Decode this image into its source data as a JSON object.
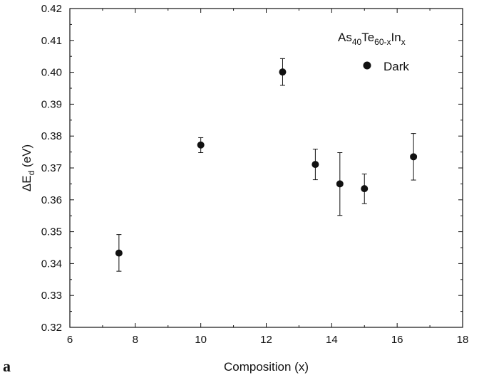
{
  "chart_data": {
    "type": "scatter",
    "panel_label": "a",
    "xlabel": "Composition (x)",
    "ylabel": {
      "base": "ΔE",
      "sub": "d",
      "rest": " (eV)"
    },
    "xlim": [
      6,
      18
    ],
    "ylim": [
      0.32,
      0.42
    ],
    "x_ticks": [
      6,
      8,
      10,
      12,
      14,
      16,
      18
    ],
    "y_ticks": [
      0.32,
      0.33,
      0.34,
      0.35,
      0.36,
      0.37,
      0.38,
      0.39,
      0.4,
      0.41,
      0.42
    ],
    "x_tick_labels": [
      "6",
      "8",
      "10",
      "12",
      "14",
      "16",
      "18"
    ],
    "y_tick_labels": [
      "0.32",
      "0.33",
      "0.34",
      "0.35",
      "0.36",
      "0.37",
      "0.38",
      "0.39",
      "0.40",
      "0.41",
      "0.42"
    ],
    "grid": false,
    "legend": {
      "placement": "top-right",
      "title_parts": [
        {
          "text": "As",
          "sub": false
        },
        {
          "text": "40",
          "sub": true
        },
        {
          "text": "Te",
          "sub": false
        },
        {
          "text": "60-x",
          "sub": true
        },
        {
          "text": "In",
          "sub": false
        },
        {
          "text": "x",
          "sub": true
        }
      ],
      "entry": "Dark"
    },
    "series": [
      {
        "name": "Dark",
        "marker": "filled-circle",
        "color": "#111111",
        "points": [
          {
            "x": 7.5,
            "y": 0.3433,
            "err_low": 0.3376,
            "err_high": 0.3491
          },
          {
            "x": 10.0,
            "y": 0.3772,
            "err_low": 0.3748,
            "err_high": 0.3795
          },
          {
            "x": 12.5,
            "y": 0.4001,
            "err_low": 0.3959,
            "err_high": 0.4043
          },
          {
            "x": 13.5,
            "y": 0.3711,
            "err_low": 0.3663,
            "err_high": 0.3759
          },
          {
            "x": 14.25,
            "y": 0.365,
            "err_low": 0.3551,
            "err_high": 0.3748
          },
          {
            "x": 15.0,
            "y": 0.3635,
            "err_low": 0.3588,
            "err_high": 0.3681
          },
          {
            "x": 16.5,
            "y": 0.3735,
            "err_low": 0.3662,
            "err_high": 0.3808
          }
        ]
      }
    ]
  }
}
